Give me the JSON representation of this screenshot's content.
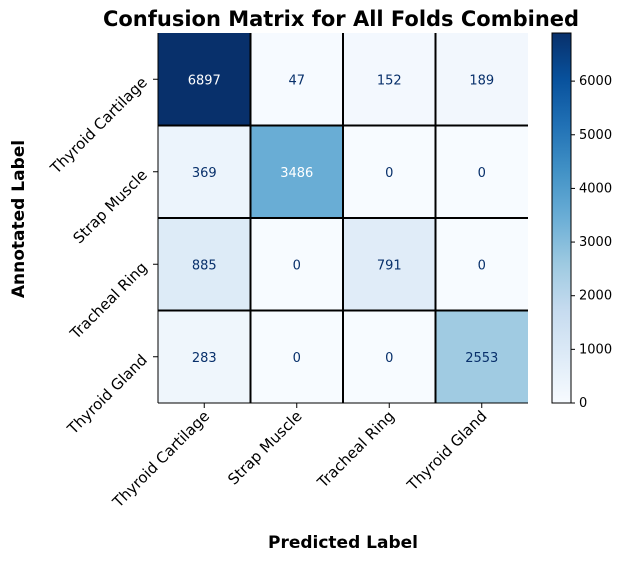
{
  "chart_data": {
    "type": "heatmap",
    "title": "Confusion Matrix for All Folds Combined",
    "xlabel": "Predicted Label",
    "ylabel": "Annotated Label",
    "x_categories": [
      "Thyroid Cartilage",
      "Strap Muscle",
      "Tracheal Ring",
      "Thyroid Gland"
    ],
    "y_categories": [
      "Thyroid Cartilage",
      "Strap Muscle",
      "Tracheal Ring",
      "Thyroid Gland"
    ],
    "matrix": [
      [
        6897,
        47,
        152,
        189
      ],
      [
        369,
        3486,
        0,
        0
      ],
      [
        885,
        0,
        791,
        0
      ],
      [
        283,
        0,
        0,
        2553
      ]
    ],
    "colormap": "Blues",
    "colorbar": {
      "range": [
        0,
        6897
      ],
      "ticks": [
        0,
        1000,
        2000,
        3000,
        4000,
        5000,
        6000
      ]
    },
    "grid_color": "#000000",
    "text_color_dark_cell": "#ffffff",
    "text_color_light_cell": "#08306b"
  }
}
